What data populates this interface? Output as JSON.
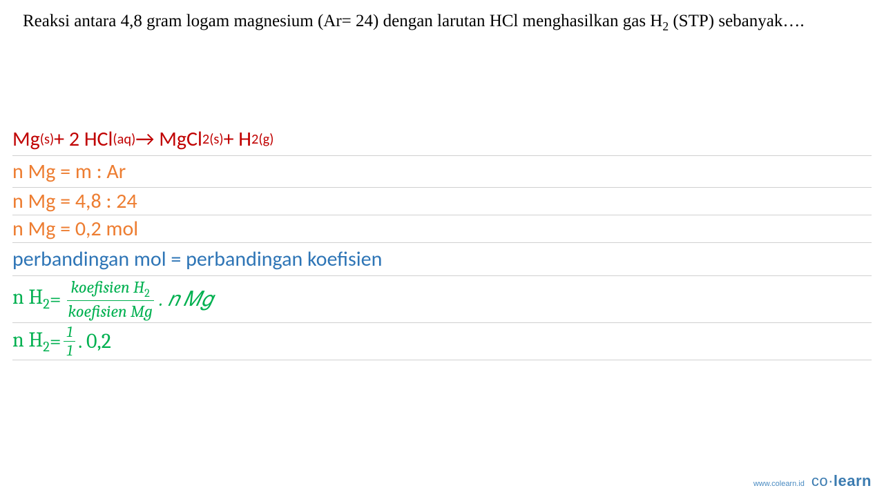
{
  "question": {
    "line_prefix": "    Reaksi antara 4,8 gram logam magnesium (Ar= 24) dengan larutan HCl menghasilkan gas H",
    "h_sub": "2",
    "line_suffix": " (STP) sebanyak…."
  },
  "solution": {
    "row1": {
      "text_color": "#c00000",
      "Mg": "Mg",
      "Mg_sub": "(s)",
      "plus1": " + 2 HCl",
      "HCl_sub": "(aq)",
      "arrow": " → MgCl",
      "MgCl_sub": "2(s)",
      "plus2": " + H",
      "H_sub": "2(g)"
    },
    "row2": {
      "text": "n Mg = m : Ar",
      "text_color": "#ed7d31"
    },
    "row3": {
      "text": "n Mg = 4,8 : 24",
      "text_color": "#ed7d31"
    },
    "row4": {
      "text": "n Mg = 0,2 mol",
      "text_color": "#ed7d31"
    },
    "row5": {
      "text": "perbandingan mol = perbandingan koefisien",
      "text_color": "#2e75b6"
    },
    "row6": {
      "lhs_nH": "n H",
      "lhs_sub": "2",
      "eq": " = ",
      "frac_num": "koefisien H",
      "frac_num_sub": "2",
      "frac_den": "koefisien Mg",
      "rhs": " . 𝑛 𝑀𝑔",
      "text_color": "#00b050"
    },
    "row7": {
      "lhs_nH": "n H",
      "lhs_sub": "2",
      "eq": " = ",
      "frac_num": "1",
      "frac_den": "1",
      "rhs": ".  0,2",
      "text_color": "#00b050"
    }
  },
  "footer": {
    "url": "www.colearn.id",
    "logo_light": "co·",
    "logo_bold": "learn"
  },
  "style": {
    "background_color": "#ffffff",
    "rule_color": "#d0d0d0",
    "question_fontsize": 25,
    "solution_fontsize": 30
  }
}
